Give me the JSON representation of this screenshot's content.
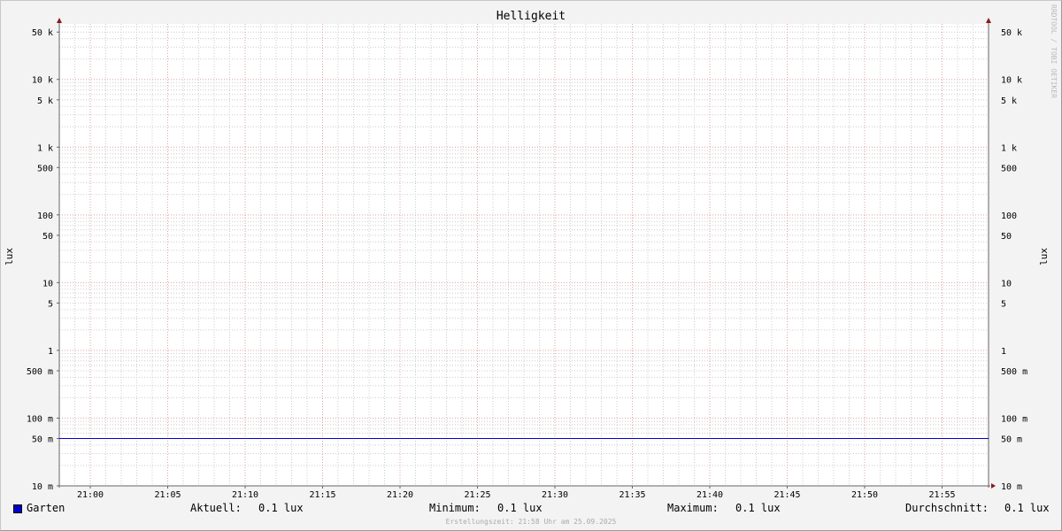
{
  "chart_data": {
    "type": "line",
    "title": "Helligkeit",
    "ylabel": "lux",
    "ylabel_right": "lux",
    "yscale": "log",
    "ylim": [
      0.01,
      66000
    ],
    "xlim": [
      "20:58",
      "21:58"
    ],
    "grid": true,
    "x_tick_labels": [
      "21:00",
      "21:05",
      "21:10",
      "21:15",
      "21:20",
      "21:25",
      "21:30",
      "21:35",
      "21:40",
      "21:45",
      "21:50",
      "21:55"
    ],
    "y_ticks": [
      {
        "value": 50000,
        "label": "50 k"
      },
      {
        "value": 10000,
        "label": "10 k"
      },
      {
        "value": 5000,
        "label": "5 k"
      },
      {
        "value": 1000,
        "label": "1 k"
      },
      {
        "value": 500,
        "label": "500"
      },
      {
        "value": 100,
        "label": "100"
      },
      {
        "value": 50,
        "label": "50"
      },
      {
        "value": 10,
        "label": "10"
      },
      {
        "value": 5,
        "label": "5"
      },
      {
        "value": 1,
        "label": "1"
      },
      {
        "value": 0.5,
        "label": "500 m"
      },
      {
        "value": 0.1,
        "label": "100 m"
      },
      {
        "value": 0.05,
        "label": "50 m"
      },
      {
        "value": 0.01,
        "label": "10 m"
      }
    ],
    "series": [
      {
        "name": "Garten",
        "color": "#0000cc",
        "x": [
          "20:58",
          "21:58"
        ],
        "values": [
          0.05,
          0.05
        ]
      }
    ]
  },
  "legend": {
    "series_name": "Garten",
    "current_label": "Aktuell:",
    "current_value": "0.1 lux",
    "min_label": "Minimum:",
    "min_value": "0.1 lux",
    "max_label": "Maximum:",
    "max_value": "0.1 lux",
    "avg_label": "Durchschnitt:",
    "avg_value": "0.1 lux"
  },
  "footer": "Erstellungszeit: 21:58 Uhr am 25.09.2025",
  "watermark": "RRDTOOL / TOBI OETIKER"
}
